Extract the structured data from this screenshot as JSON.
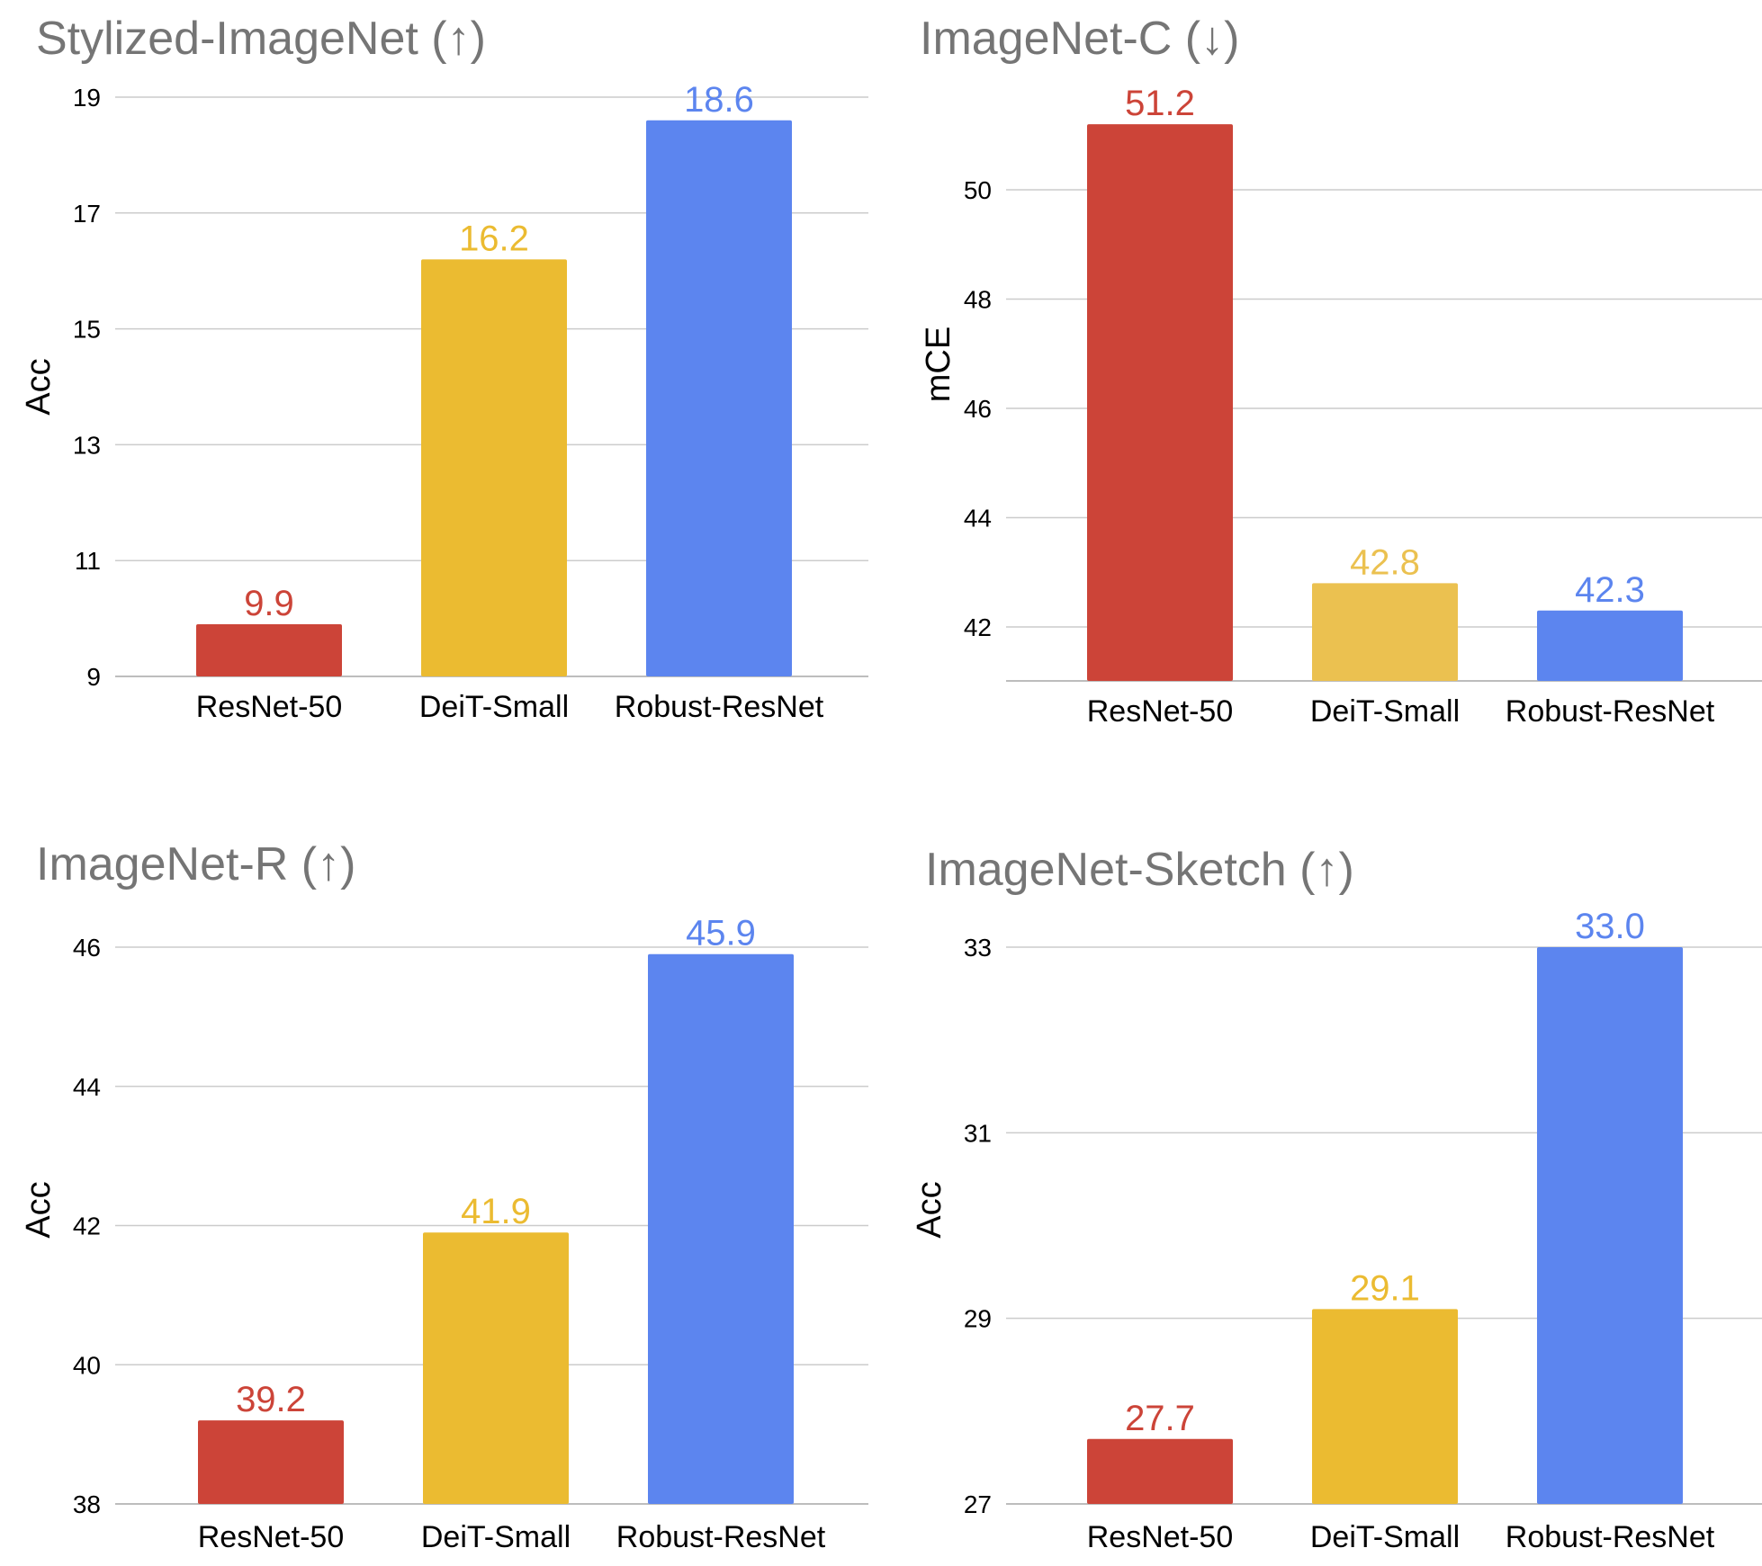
{
  "chart_data": [
    {
      "type": "bar",
      "title": "Stylized-ImageNet  (↑)",
      "ylabel": "Acc",
      "categories": [
        "ResNet-50",
        "DeiT-Small",
        "Robust-ResNet"
      ],
      "values": [
        9.9,
        16.2,
        18.6
      ],
      "value_labels": [
        "9.9",
        "16.2",
        "18.6"
      ],
      "ylim": [
        9,
        19
      ],
      "yticks": [
        9,
        11,
        13,
        15,
        17,
        19
      ],
      "ytick_labels": [
        "9",
        "11",
        "13",
        "15",
        "17",
        "19"
      ],
      "colors": [
        "#cc4438",
        "#ebbb31",
        "#5c85ef"
      ],
      "grid": true
    },
    {
      "type": "bar",
      "title": "ImageNet-C (↓)",
      "ylabel": "mCE",
      "categories": [
        "ResNet-50",
        "DeiT-Small",
        "Robust-ResNet"
      ],
      "values": [
        51.2,
        42.8,
        42.3
      ],
      "value_labels": [
        "51.2",
        "42.8",
        "42.3"
      ],
      "ylim": [
        41,
        51.8
      ],
      "yticks": [
        42,
        44,
        46,
        48,
        50
      ],
      "ytick_labels": [
        "42",
        "44",
        "46",
        "48",
        "50"
      ],
      "colors": [
        "#cc4438",
        "#ebc150",
        "#5c85ef"
      ],
      "grid": true
    },
    {
      "type": "bar",
      "title": "ImageNet-R (↑)",
      "ylabel": "Acc",
      "categories": [
        "ResNet-50",
        "DeiT-Small",
        "Robust-ResNet"
      ],
      "values": [
        39.2,
        41.9,
        45.9
      ],
      "value_labels": [
        "39.2",
        "41.9",
        "45.9"
      ],
      "ylim": [
        38,
        46
      ],
      "yticks": [
        38,
        40,
        42,
        44,
        46
      ],
      "ytick_labels": [
        "38",
        "40",
        "42",
        "44",
        "46"
      ],
      "colors": [
        "#cc4438",
        "#ebbb31",
        "#5c85ef"
      ],
      "grid": true
    },
    {
      "type": "bar",
      "title": "ImageNet-Sketch (↑)",
      "ylabel": "Acc",
      "categories": [
        "ResNet-50",
        "DeiT-Small",
        "Robust-ResNet"
      ],
      "values": [
        27.7,
        29.1,
        33.0
      ],
      "value_labels": [
        "27.7",
        "29.1",
        "33.0"
      ],
      "ylim": [
        27,
        33
      ],
      "yticks": [
        27,
        29,
        31,
        33
      ],
      "ytick_labels": [
        "27",
        "29",
        "31",
        "33"
      ],
      "colors": [
        "#cc4438",
        "#ebbb31",
        "#5c85ef"
      ],
      "grid": true
    }
  ]
}
